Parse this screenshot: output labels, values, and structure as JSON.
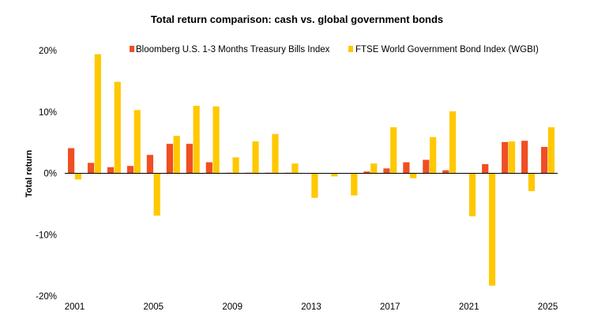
{
  "chart_data": {
    "type": "bar",
    "title": "Total return comparison: cash vs. global government bonds",
    "ylabel": "Total return",
    "xlabel": "",
    "ylim": [
      -20,
      20
    ],
    "y_ticks": [
      "20%",
      "10%",
      "0%",
      "-10%",
      "-20%"
    ],
    "x_tick_labels": [
      "2001",
      "2005",
      "2009",
      "2013",
      "2017",
      "2021",
      "2025"
    ],
    "legend_position": "top",
    "grid": false,
    "categories": [
      "2001",
      "2002",
      "2003",
      "2004",
      "2005",
      "2006",
      "2007",
      "2008",
      "2009",
      "2010",
      "2011",
      "2012",
      "2013",
      "2014",
      "2015",
      "2016",
      "2017",
      "2018",
      "2019",
      "2020",
      "2021",
      "2022",
      "2023",
      "2024",
      "2025"
    ],
    "series": [
      {
        "name": "Bloomberg U.S. 1-3 Months Treasury Bills Index",
        "color": "#f04e23",
        "values": [
          4.1,
          1.7,
          1.0,
          1.2,
          3.0,
          4.8,
          4.8,
          1.8,
          0.1,
          0.1,
          0.1,
          0.1,
          0.0,
          0.0,
          0.0,
          0.3,
          0.8,
          1.8,
          2.2,
          0.5,
          0.0,
          1.5,
          5.1,
          5.3,
          4.3
        ]
      },
      {
        "name": "FTSE World Government Bond Index (WGBI)",
        "color": "#ffc800",
        "values": [
          -1.0,
          19.4,
          14.9,
          10.3,
          -6.9,
          6.1,
          11.0,
          10.9,
          2.6,
          5.2,
          6.4,
          1.6,
          -4.0,
          -0.5,
          -3.6,
          1.6,
          7.5,
          -0.8,
          5.9,
          10.1,
          -7.0,
          -18.3,
          5.2,
          -2.9,
          7.5
        ]
      }
    ]
  }
}
